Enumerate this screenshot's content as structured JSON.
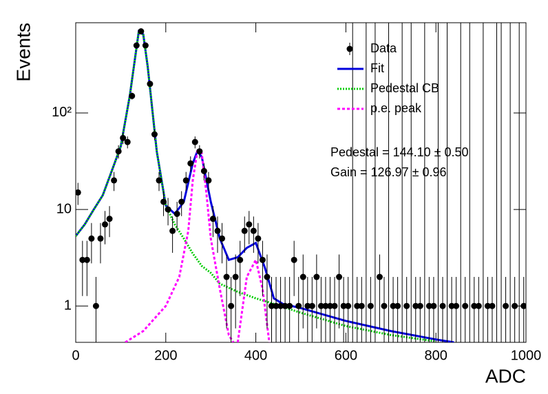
{
  "chart_data": {
    "type": "errorbar",
    "xlabel": "ADC",
    "ylabel": "Events",
    "log_y": true,
    "xlim": [
      0,
      1000
    ],
    "ylim": [
      0.42,
      860
    ],
    "xticks": [
      0,
      200,
      400,
      600,
      800,
      1000
    ],
    "yticks": [
      1,
      10,
      {
        "value": 100,
        "label": "10²"
      }
    ],
    "legend": "upper right",
    "data": {
      "name": "Data",
      "color": "#000000",
      "x": [
        5,
        15,
        25,
        35,
        45,
        55,
        65,
        75,
        85,
        95,
        105,
        115,
        125,
        135,
        145,
        155,
        165,
        175,
        185,
        195,
        205,
        215,
        225,
        235,
        245,
        255,
        265,
        275,
        285,
        295,
        305,
        315,
        325,
        335,
        345,
        355,
        365,
        375,
        385,
        395,
        405,
        415,
        425,
        435,
        445,
        455,
        465,
        475,
        485,
        495,
        505,
        515,
        525,
        535,
        545,
        555,
        565,
        575,
        585,
        595,
        605,
        615,
        625,
        635,
        645,
        655,
        665,
        675,
        685,
        695,
        705,
        715,
        725,
        735,
        745,
        755,
        765,
        775,
        785,
        795,
        805,
        815,
        825,
        835,
        845,
        855,
        865,
        875,
        885,
        895,
        905,
        915,
        925,
        935,
        945,
        955,
        965,
        975,
        985,
        995
      ],
      "values": [
        15,
        3,
        3,
        5,
        1,
        5,
        7,
        8,
        20,
        40,
        55,
        50,
        150,
        500,
        700,
        500,
        200,
        60,
        20,
        12,
        10,
        6,
        9,
        12,
        20,
        30,
        50,
        40,
        25,
        20,
        8,
        6,
        5,
        2,
        1,
        2,
        3,
        6,
        7,
        6,
        5,
        3,
        2,
        1,
        1,
        1,
        1,
        1,
        3,
        1,
        2,
        1,
        1,
        2,
        1,
        1,
        1,
        1,
        2,
        1,
        1,
        0,
        1,
        1,
        0,
        1,
        0,
        2,
        1,
        0,
        1,
        1,
        0,
        1,
        0,
        1,
        1,
        0,
        1,
        1,
        0,
        1,
        0,
        1,
        1,
        0,
        1,
        0,
        1,
        1,
        0,
        1,
        1,
        0,
        0,
        1,
        0,
        1,
        0,
        1
      ]
    },
    "series": [
      {
        "name": "Fit",
        "color": "#0000dd",
        "style": "solid",
        "x": [
          0,
          20,
          40,
          60,
          80,
          100,
          120,
          140,
          150,
          160,
          180,
          200,
          220,
          240,
          260,
          270,
          280,
          300,
          320,
          340,
          360,
          380,
          400,
          420,
          440,
          460,
          500,
          600,
          700,
          800,
          840
        ],
        "values": [
          5.3,
          7,
          10,
          14,
          25,
          45,
          150,
          700,
          650,
          300,
          40,
          11,
          9,
          12,
          30,
          40,
          35,
          12,
          5,
          3,
          3.2,
          4,
          4.5,
          2.5,
          1.2,
          1.05,
          0.95,
          0.7,
          0.55,
          0.45,
          0.42
        ]
      },
      {
        "name": "Pedestal CB",
        "color": "#00cc00",
        "style": "dotted",
        "x": [
          0,
          20,
          40,
          60,
          80,
          100,
          120,
          140,
          150,
          160,
          180,
          200,
          220,
          240,
          260,
          280,
          300,
          320,
          360,
          400,
          440,
          500,
          600,
          700,
          800
        ],
        "values": [
          5.3,
          7,
          10,
          14,
          25,
          45,
          150,
          700,
          650,
          300,
          40,
          11,
          7,
          5,
          3.5,
          2.6,
          2.2,
          1.7,
          1.4,
          1.2,
          1.05,
          0.85,
          0.62,
          0.5,
          0.43
        ]
      },
      {
        "name": "p.e. peak",
        "color": "#ff00ff",
        "style": "dashed",
        "x": [
          110,
          150,
          200,
          230,
          250,
          260,
          270,
          280,
          290,
          300,
          320,
          340,
          350,
          355,
          360,
          380,
          400,
          415,
          430
        ],
        "values": [
          0.42,
          0.55,
          1.0,
          2,
          6,
          20,
          40,
          38,
          15,
          5,
          1.5,
          0.5,
          0.42,
          null,
          0.42,
          2,
          3,
          1.5,
          0.42
        ]
      }
    ],
    "annotations": [
      "Pedestal = 144.10 ± 0.50",
      "Gain = 126.97 ± 0.96"
    ]
  }
}
